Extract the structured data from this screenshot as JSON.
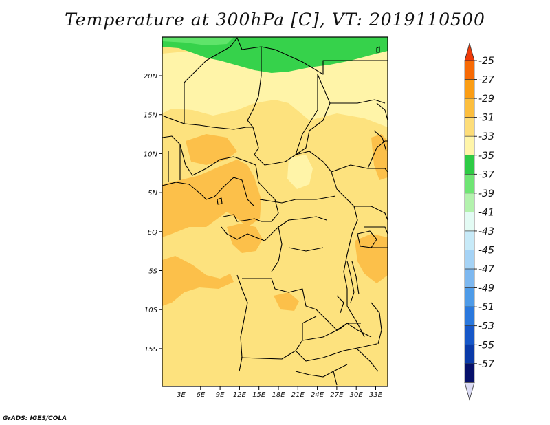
{
  "title": "Temperature at 300hPa [C], VT: 2019110500",
  "credit": "GrADS: IGES/COLA",
  "map": {
    "lat_labels": [
      "20N",
      "15N",
      "10N",
      "5N",
      "EQ",
      "5S",
      "10S",
      "15S"
    ],
    "lon_labels": [
      "3E",
      "6E",
      "9E",
      "12E",
      "15E",
      "18E",
      "21E",
      "24E",
      "27E",
      "30E",
      "33E"
    ],
    "region": "Central Africa",
    "colors": {
      "background": "#fde27e",
      "light": "#fff4a8",
      "warm": "#fcc04a",
      "green": "#36d24b",
      "light_green": "#5fe46a"
    }
  },
  "legend": {
    "labels": [
      "-25",
      "-27",
      "-29",
      "-31",
      "-33",
      "-35",
      "-37",
      "-39",
      "-41",
      "-43",
      "-45",
      "-47",
      "-49",
      "-51",
      "-53",
      "-55",
      "-57"
    ],
    "colors": [
      "#f76a05",
      "#fb9d14",
      "#fcbe3e",
      "#fddd79",
      "#fff5a9",
      "#2ecb45",
      "#6fe574",
      "#b3f2ad",
      "#e3fbf4",
      "#c7eaf8",
      "#a5d3f6",
      "#7db8f0",
      "#4e9be8",
      "#2a78dd",
      "#1657c8",
      "#0a3aa8",
      "#06106a"
    ],
    "top_arrow_color": "#ef3a08",
    "bottom_arrow_color": "#dcdcf5"
  }
}
